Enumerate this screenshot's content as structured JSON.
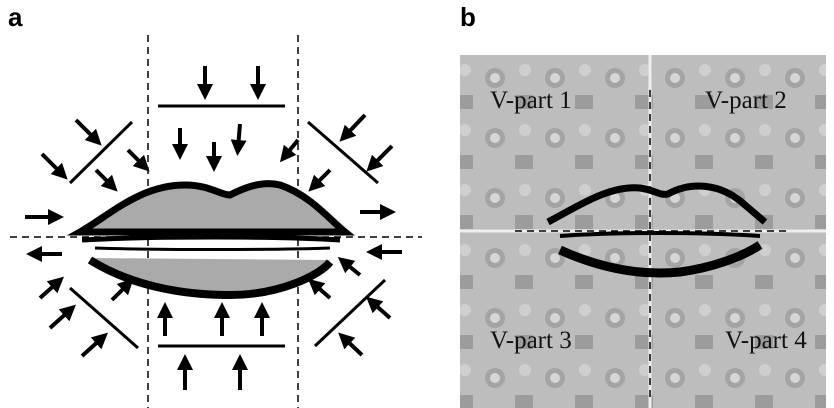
{
  "panel_a": {
    "label": "a"
  },
  "panel_b": {
    "label": "b",
    "regions": [
      "V-part 1",
      "V-part 2",
      "V-part 3",
      "V-part 4"
    ]
  }
}
